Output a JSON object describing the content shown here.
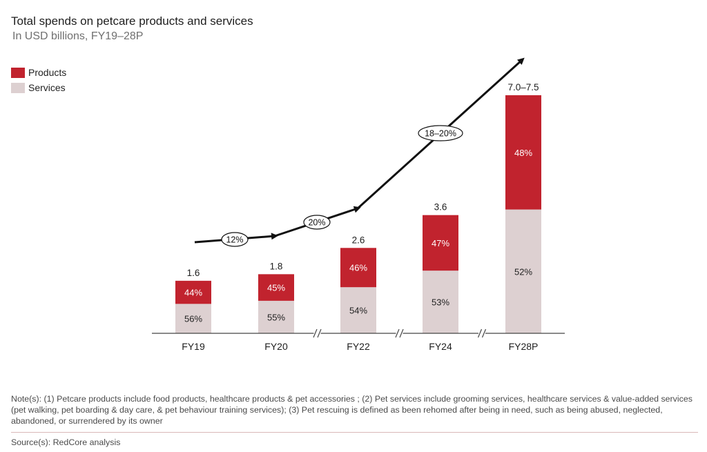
{
  "chart_data": {
    "type": "bar",
    "stacked": true,
    "title": "Total spends on petcare products and services",
    "subtitle": "In USD billions, FY19–28P",
    "categories": [
      "FY19",
      "FY20",
      "FY22",
      "FY24",
      "FY28P"
    ],
    "totals": [
      1.6,
      1.8,
      2.6,
      3.6,
      7.25
    ],
    "total_labels": [
      "1.6",
      "1.8",
      "2.6",
      "3.6",
      "7.0–7.5"
    ],
    "series": [
      {
        "name": "Products",
        "share_pct": [
          44,
          45,
          46,
          47,
          48
        ],
        "labels": [
          "44%",
          "45%",
          "46%",
          "47%",
          "48%"
        ],
        "color": "#c1232e"
      },
      {
        "name": "Services",
        "share_pct": [
          56,
          55,
          54,
          53,
          52
        ],
        "labels": [
          "56%",
          "55%",
          "54%",
          "53%",
          "52%"
        ],
        "color": "#ddd0d1"
      }
    ],
    "ylim": [
      0,
      7.25
    ],
    "axis_breaks_after": [
      "FY20",
      "FY22",
      "FY24"
    ],
    "growth_labels": [
      "12%",
      "20%",
      "18–20%"
    ],
    "legend_position": "top-left"
  },
  "notes": "Note(s): (1) Petcare products include food products, healthcare products & pet accessories ; (2) Pet services include grooming services, healthcare services & value-added services (pet walking, pet boarding & day care, & pet behaviour training services); (3) Pet rescuing is defined as been rehomed after being in need, such as being abused, neglected, abandoned, or surrendered by its owner",
  "source": "Source(s): RedCore analysis"
}
